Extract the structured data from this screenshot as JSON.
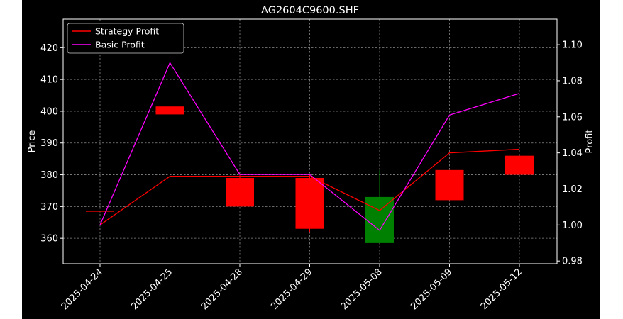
{
  "colors": {
    "background": "#000000",
    "axes": "#ffffff",
    "grid": "#8a8a8a",
    "candle_down": "#ff0000",
    "candle_up": "#008000",
    "strategy": "#ff0000",
    "basic": "#ff00ff"
  },
  "chart_data": {
    "type": "candlestick-line",
    "title": "AG2604C9600.SHF",
    "xlabel": "",
    "ylabel_left": "Price",
    "ylabel_right": "Profit",
    "grid": true,
    "legend_position": "upper-left",
    "categories": [
      "2025-04-24",
      "2025-04-25",
      "2025-04-28",
      "2025-04-29",
      "2025-05-08",
      "2025-05-09",
      "2025-05-12"
    ],
    "y_left": {
      "ticks": [
        360,
        370,
        380,
        390,
        400,
        410,
        420
      ],
      "range": [
        352,
        429
      ]
    },
    "y_right": {
      "ticks": [
        0.98,
        1.0,
        1.02,
        1.04,
        1.06,
        1.08,
        1.1
      ],
      "range": [
        0.9785,
        1.1142
      ]
    },
    "candles": [
      {
        "date": "2025-04-24",
        "open": 368.5,
        "high": 368.5,
        "low": 368.5,
        "close": 368.5,
        "color": "down"
      },
      {
        "date": "2025-04-25",
        "open": 401.5,
        "high": 421.5,
        "low": 394.5,
        "close": 399,
        "color": "down"
      },
      {
        "date": "2025-04-28",
        "open": 379,
        "high": 380,
        "low": 370,
        "close": 370,
        "color": "down"
      },
      {
        "date": "2025-04-29",
        "open": 379,
        "high": 380,
        "low": 362,
        "close": 363,
        "color": "down"
      },
      {
        "date": "2025-05-08",
        "open": 358.5,
        "high": 381.5,
        "low": 358.5,
        "close": 373,
        "color": "up"
      },
      {
        "date": "2025-05-09",
        "open": 381.5,
        "high": 381.5,
        "low": 372,
        "close": 372,
        "color": "down"
      },
      {
        "date": "2025-05-12",
        "open": 386,
        "high": 386,
        "low": 380,
        "close": 380,
        "color": "down"
      }
    ],
    "series": [
      {
        "name": "Strategy Profit",
        "values": [
          1.0,
          1.027,
          1.027,
          1.027,
          1.008,
          1.04,
          1.042
        ]
      },
      {
        "name": "Basic Profit",
        "values": [
          1.0,
          1.09,
          1.028,
          1.028,
          0.997,
          1.061,
          1.073
        ]
      }
    ]
  }
}
